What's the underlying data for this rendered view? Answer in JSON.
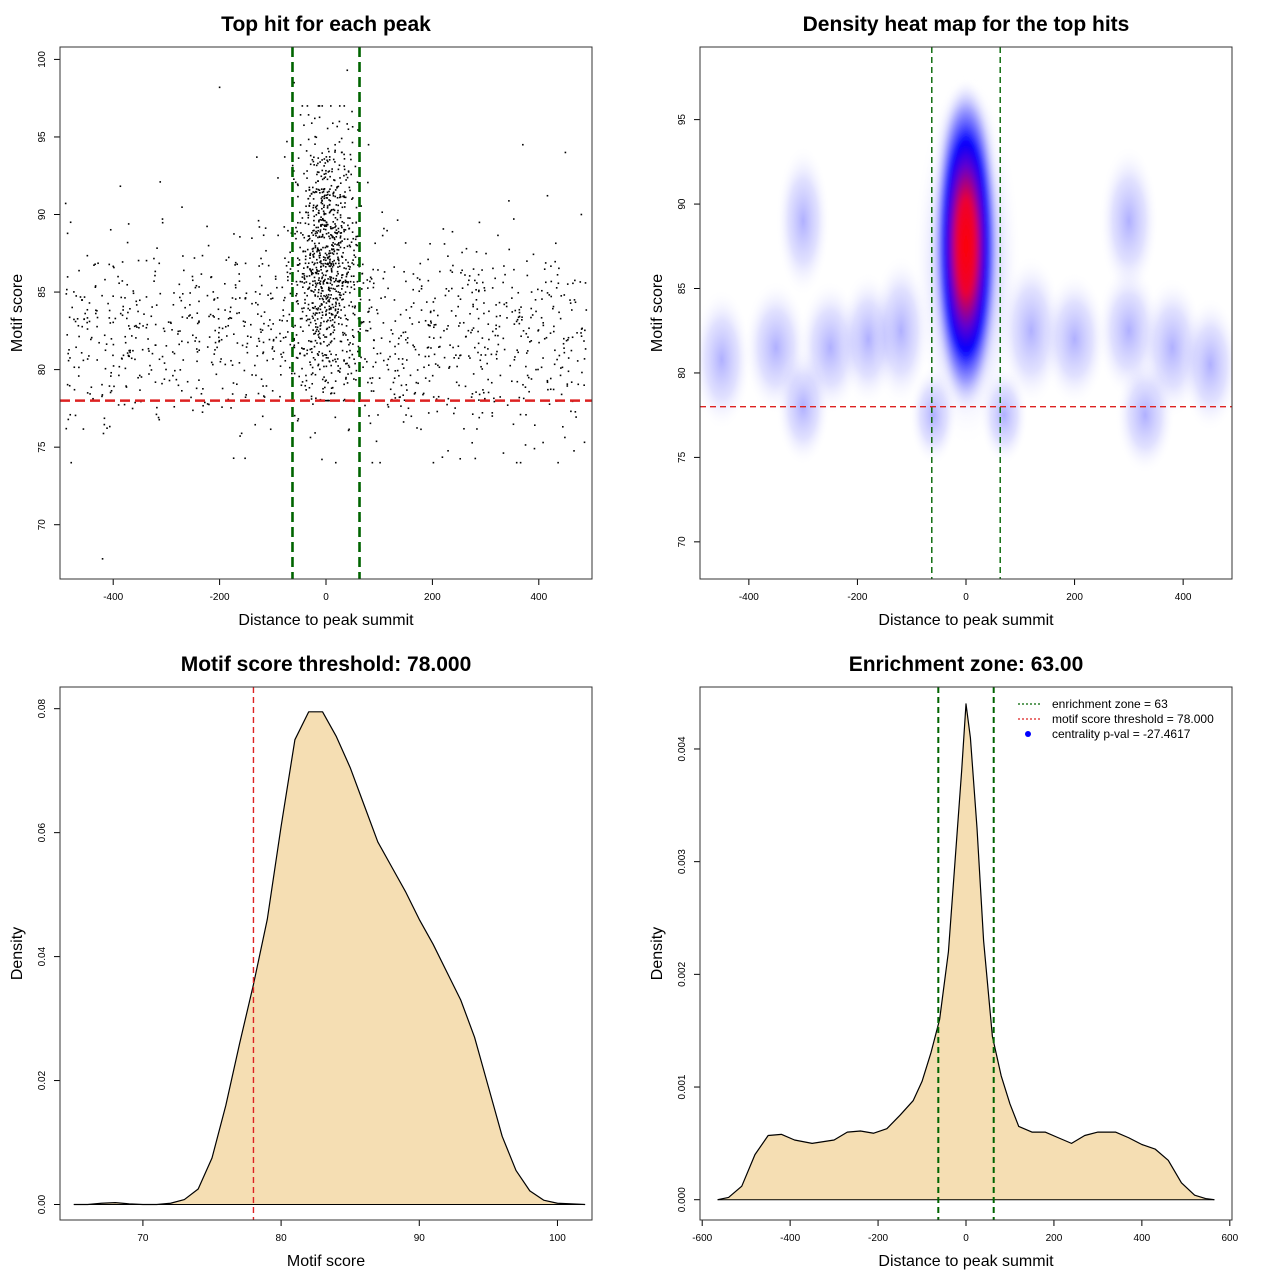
{
  "chart_data": [
    {
      "type": "scatter",
      "title": "Top hit for each peak",
      "xlabel": "Distance to peak summit",
      "ylabel": "Motif score",
      "xlim": [
        -500,
        500
      ],
      "ylim": [
        66.5,
        100.8
      ],
      "xticks": [
        "-400",
        "-200",
        "0",
        "200",
        "400"
      ],
      "xtick_values": [
        -400,
        -200,
        0,
        200,
        400
      ],
      "yticks": [
        "70",
        "75",
        "80",
        "85",
        "90",
        "95",
        "100"
      ],
      "ytick_values": [
        70,
        75,
        80,
        85,
        90,
        95,
        100
      ],
      "grid": false,
      "point_color": "#000000",
      "approx_point_count": 2000,
      "distribution": {
        "background_x_range": [
          -490,
          490
        ],
        "background_y_range": [
          74,
          94
        ],
        "background_mode_y": 82,
        "central_cluster_x_center": 0,
        "central_cluster_x_spread": 30,
        "central_cluster_y_range": [
          78,
          97
        ]
      },
      "sample_points": [
        [
          -420,
          67.8
        ],
        [
          -200,
          98.2
        ],
        [
          40,
          99.3
        ],
        [
          -60,
          98.5
        ],
        [
          80,
          94.5
        ],
        [
          -130,
          93.7
        ],
        [
          450,
          94
        ],
        [
          370,
          94.5
        ],
        [
          -480,
          89.5
        ],
        [
          480,
          90
        ]
      ],
      "hlines": [
        {
          "value": 78,
          "color": "#dd2222",
          "style": "dashed"
        }
      ],
      "vlines": [
        {
          "value": -63,
          "color": "#006400",
          "style": "dashed"
        },
        {
          "value": 63,
          "color": "#006400",
          "style": "dashed"
        }
      ]
    },
    {
      "type": "heatmap",
      "title": "Density heat map for the top hits",
      "xlabel": "Distance to peak summit",
      "ylabel": "Motif score",
      "xlim": [
        -490,
        490
      ],
      "ylim": [
        67.8,
        99.3
      ],
      "xticks": [
        "-400",
        "-200",
        "0",
        "200",
        "400"
      ],
      "xtick_values": [
        -400,
        -200,
        0,
        200,
        400
      ],
      "yticks": [
        "70",
        "75",
        "80",
        "85",
        "90",
        "95"
      ],
      "ytick_values": [
        70,
        75,
        80,
        85,
        90,
        95
      ],
      "grid": false,
      "color_scale": [
        "#ffffff",
        "#0000ff",
        "#ff0000"
      ],
      "density_peak": {
        "x": 0,
        "y": 89
      },
      "hlines": [
        {
          "value": 78,
          "color": "#dd2222",
          "style": "dashed"
        }
      ],
      "vlines": [
        {
          "value": -63,
          "color": "#006400",
          "style": "dashed"
        },
        {
          "value": 63,
          "color": "#006400",
          "style": "dashed"
        }
      ]
    },
    {
      "type": "area",
      "title": "Motif score threshold: 78.000",
      "xlabel": "Motif score",
      "ylabel": "Density",
      "xlim": [
        64,
        102.5
      ],
      "ylim": [
        -0.0025,
        0.0835
      ],
      "xticks": [
        "70",
        "80",
        "90",
        "100"
      ],
      "xtick_values": [
        70,
        80,
        90,
        100
      ],
      "yticks": [
        "0.00",
        "0.02",
        "0.04",
        "0.06",
        "0.08"
      ],
      "ytick_values": [
        0,
        0.02,
        0.04,
        0.06,
        0.08
      ],
      "grid": false,
      "fill_color": "#f5deb3",
      "x": [
        65,
        66,
        67,
        68,
        69,
        70,
        71,
        72,
        73,
        74,
        75,
        76,
        77,
        78,
        79,
        80,
        81,
        82,
        83,
        84,
        85,
        86,
        87,
        88,
        89,
        90,
        91,
        92,
        93,
        94,
        95,
        96,
        97,
        98,
        99,
        100,
        101,
        102
      ],
      "values": [
        0,
        0,
        0.0002,
        0.0003,
        0.0001,
        0,
        0,
        0.0002,
        0.0008,
        0.0025,
        0.0075,
        0.016,
        0.026,
        0.0355,
        0.046,
        0.061,
        0.075,
        0.0795,
        0.0795,
        0.0755,
        0.0705,
        0.0645,
        0.0585,
        0.0545,
        0.0505,
        0.046,
        0.042,
        0.0375,
        0.033,
        0.027,
        0.019,
        0.011,
        0.0055,
        0.0022,
        0.0007,
        0.0002,
        0.0001,
        0
      ],
      "vlines": [
        {
          "value": 78,
          "color": "#dd2222",
          "style": "dashed"
        }
      ]
    },
    {
      "type": "area",
      "title": "Enrichment zone: 63.00",
      "xlabel": "Distance to peak summit",
      "ylabel": "Density",
      "xlim": [
        -605,
        605
      ],
      "ylim": [
        -0.00018,
        0.00455
      ],
      "xticks": [
        "-600",
        "-400",
        "-200",
        "0",
        "200",
        "400",
        "600"
      ],
      "xtick_values": [
        -600,
        -400,
        -200,
        0,
        200,
        400,
        600
      ],
      "yticks": [
        "0.000",
        "0.001",
        "0.002",
        "0.003",
        "0.004"
      ],
      "ytick_values": [
        0,
        0.001,
        0.002,
        0.003,
        0.004
      ],
      "grid": false,
      "fill_color": "#f5deb3",
      "x": [
        -565,
        -540,
        -510,
        -480,
        -450,
        -420,
        -390,
        -350,
        -300,
        -270,
        -240,
        -210,
        -180,
        -150,
        -120,
        -100,
        -80,
        -60,
        -40,
        -25,
        -10,
        0,
        10,
        25,
        40,
        60,
        80,
        100,
        120,
        150,
        180,
        210,
        240,
        270,
        300,
        340,
        370,
        400,
        430,
        460,
        490,
        520,
        545,
        565
      ],
      "values": [
        0,
        2e-05,
        0.00012,
        0.0004,
        0.00057,
        0.00058,
        0.00053,
        0.0005,
        0.00053,
        0.0006,
        0.00061,
        0.00059,
        0.00063,
        0.00075,
        0.00088,
        0.00105,
        0.0013,
        0.0016,
        0.0022,
        0.003,
        0.0038,
        0.0044,
        0.0041,
        0.0033,
        0.0023,
        0.00145,
        0.0011,
        0.00085,
        0.00065,
        0.0006,
        0.0006,
        0.00055,
        0.0005,
        0.00057,
        0.0006,
        0.0006,
        0.00055,
        0.00049,
        0.00045,
        0.00035,
        0.00015,
        4e-05,
        1e-05,
        0
      ],
      "vlines": [
        {
          "value": -63,
          "color": "#006400",
          "style": "dashed"
        },
        {
          "value": 63,
          "color": "#006400",
          "style": "dashed"
        }
      ],
      "legend": {
        "placement": "top-right",
        "entries": [
          {
            "label": "enrichment zone = 63",
            "color": "#006400",
            "symbol": "dotted-line"
          },
          {
            "label": "motif score threshold = 78.000",
            "color": "#dd2222",
            "symbol": "dotted-line"
          },
          {
            "label": "centrality p-val = -27.4617",
            "color": "#0000ff",
            "symbol": "point"
          }
        ]
      }
    }
  ]
}
